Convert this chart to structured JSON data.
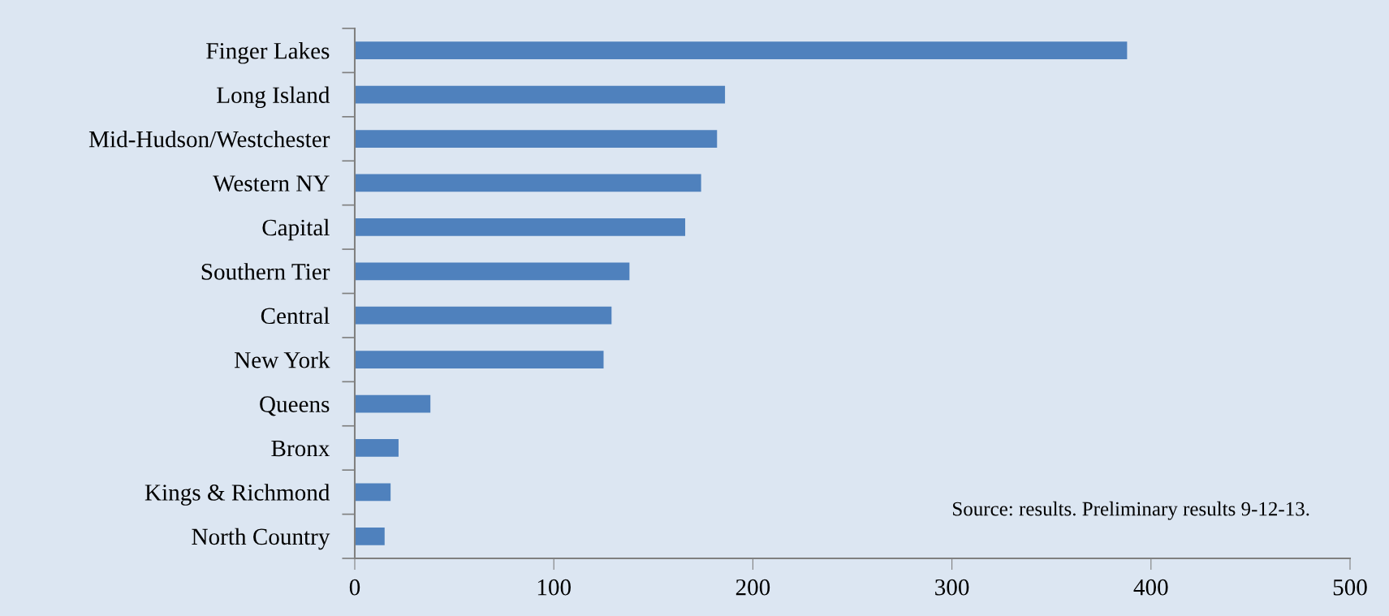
{
  "chart_data": {
    "type": "bar",
    "orientation": "horizontal",
    "categories": [
      "Finger Lakes",
      "Long Island",
      "Mid-Hudson/Westchester",
      "Western NY",
      "Capital",
      "Southern Tier",
      "Central",
      "New York",
      "Queens",
      "Bronx",
      "Kings & Richmond",
      "North Country"
    ],
    "values": [
      388,
      186,
      182,
      174,
      166,
      138,
      129,
      125,
      38,
      22,
      18,
      15
    ],
    "color": "#4f81bd",
    "xlim": [
      0,
      500
    ],
    "xticks": [
      0,
      100,
      200,
      300,
      400,
      500
    ],
    "grid": false,
    "legend": false,
    "annotations": [
      "Source: results. Preliminary results 9-12-13."
    ]
  }
}
